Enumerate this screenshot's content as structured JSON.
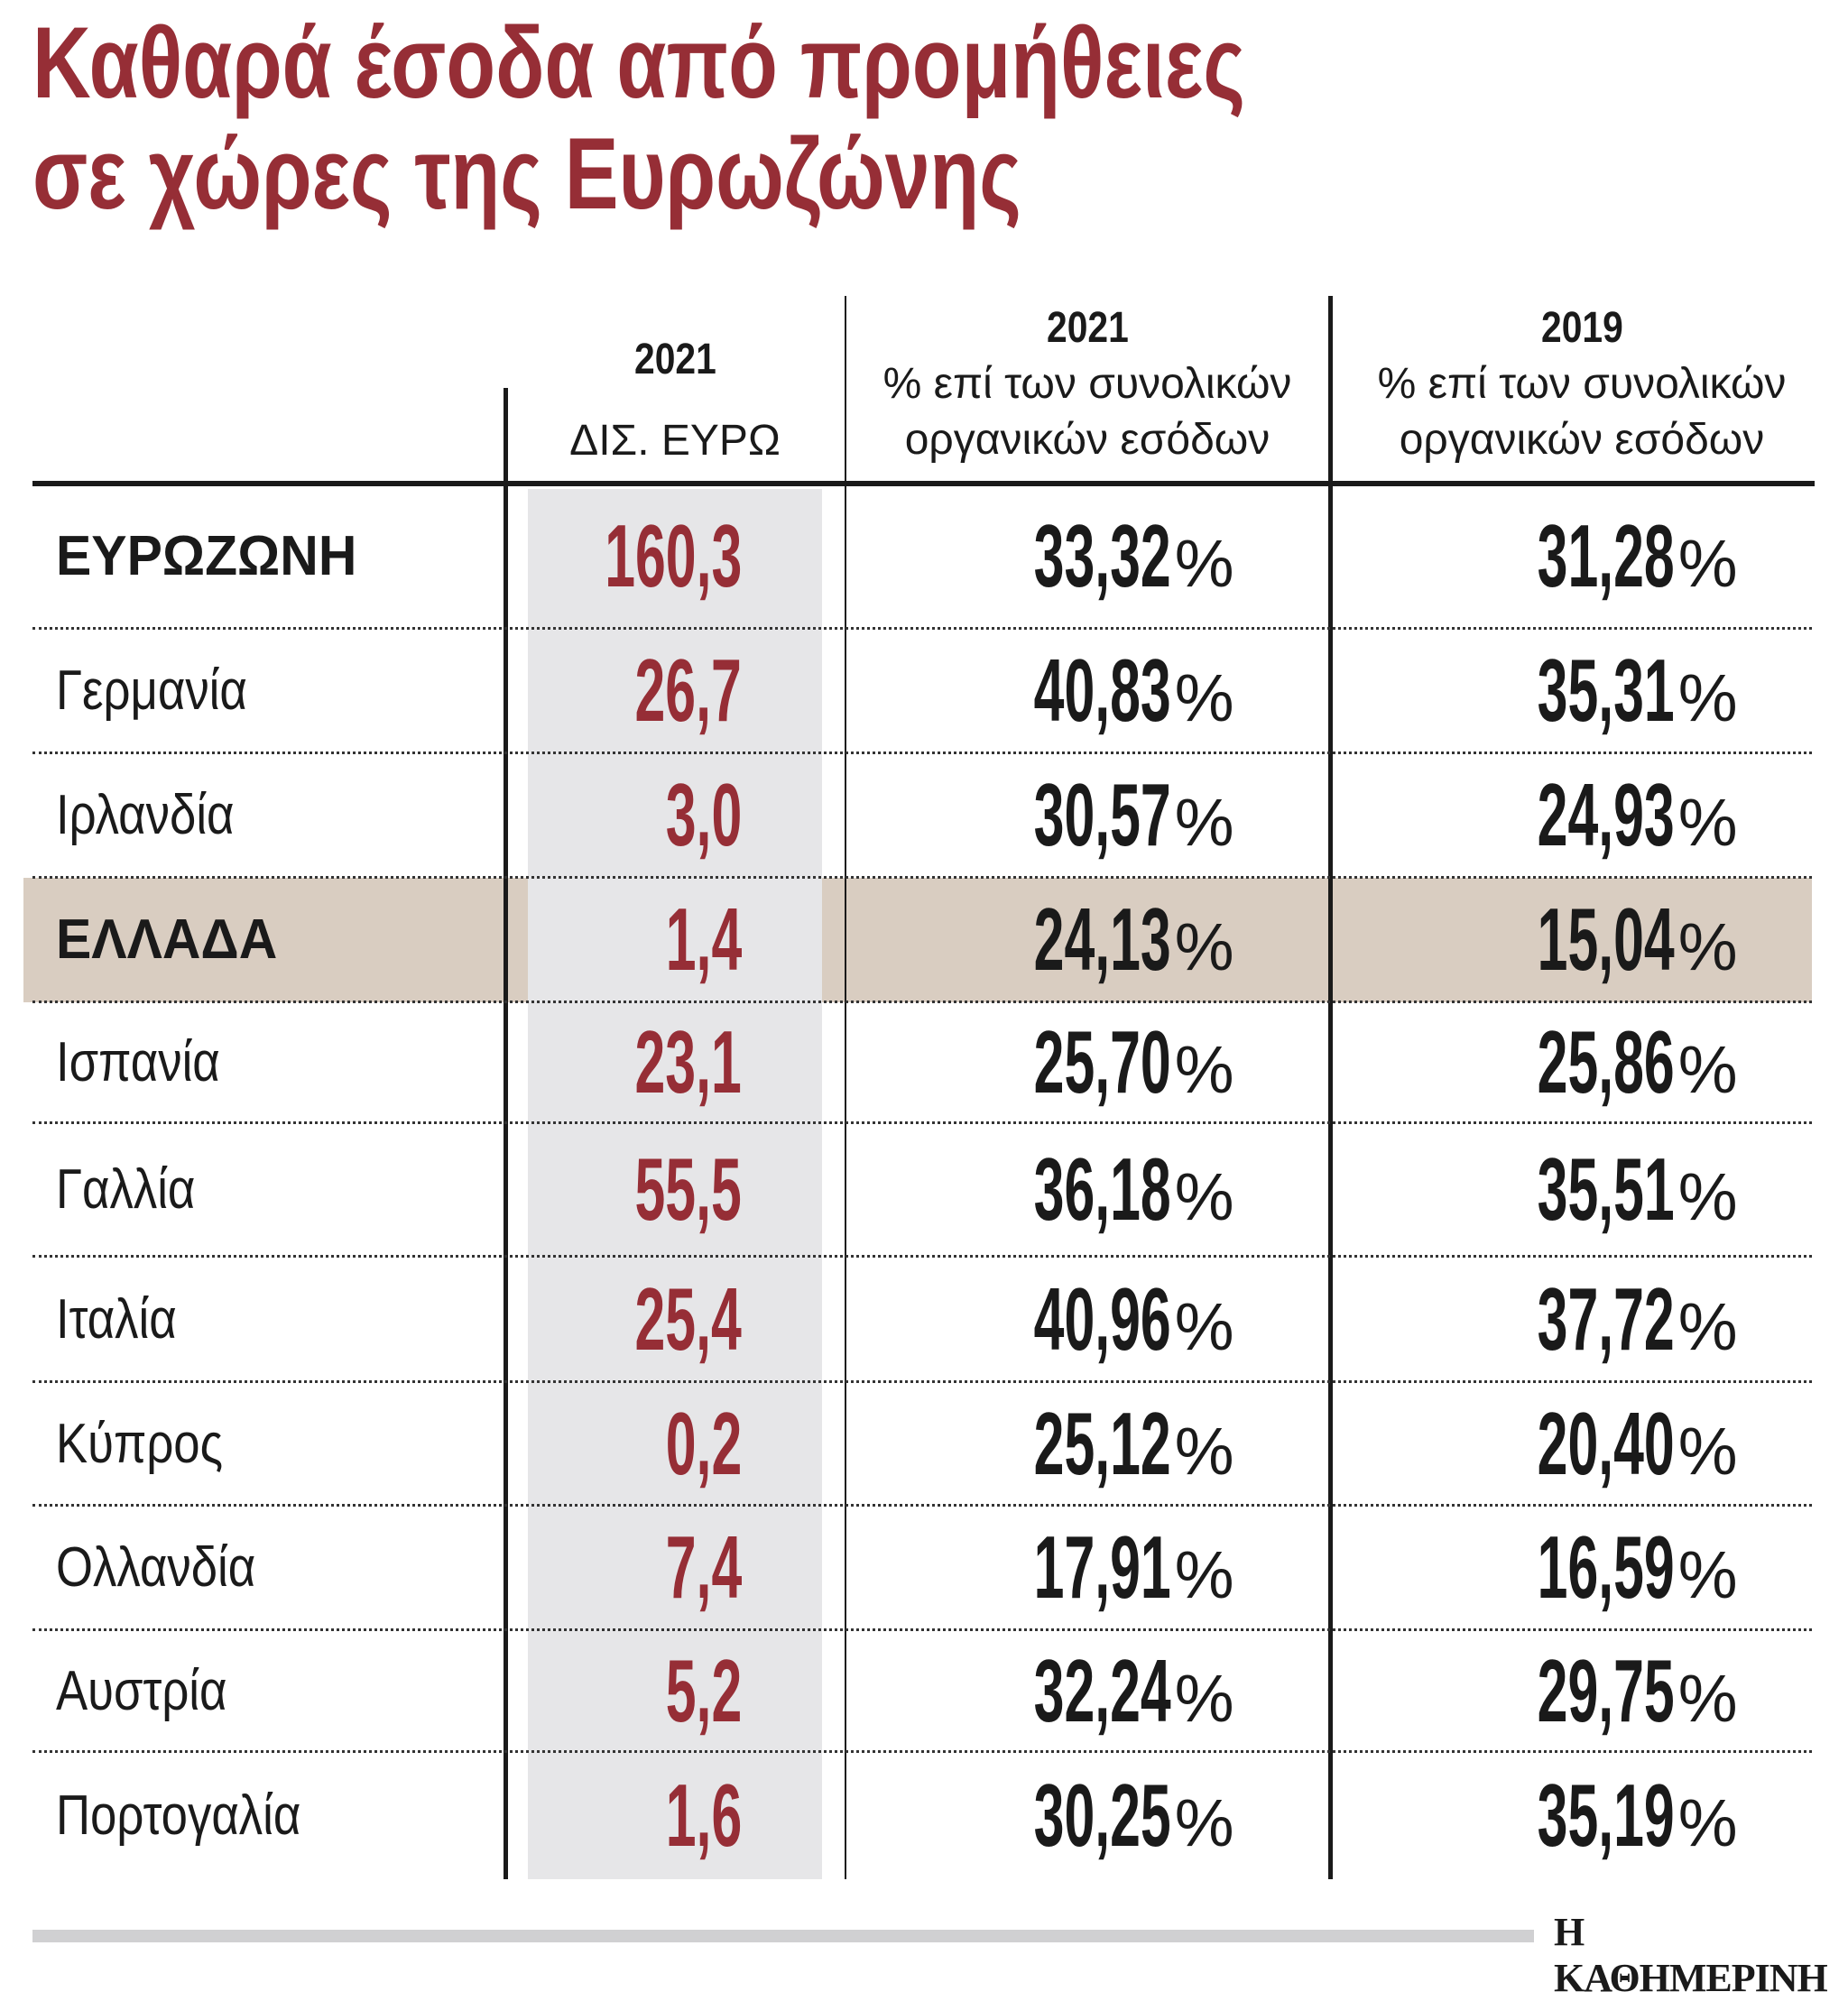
{
  "title": {
    "line1": "Καθαρά έσοδα από προμήθειες",
    "line2": "σε χώρες της Ευρωζώνης"
  },
  "colors": {
    "accent": "#962e36",
    "highlight_row": "#d9cdc1",
    "value_column": "#e6e6e8"
  },
  "headers": [
    {
      "year": "2021",
      "line1": "ΔΙΣ. ΕΥΡΩ",
      "line2": ""
    },
    {
      "year": "2021",
      "line1": "% επί των συνολικών",
      "line2": "οργανικών εσόδων"
    },
    {
      "year": "2019",
      "line1": "% επί των συνολικών",
      "line2": "οργανικών εσόδων"
    }
  ],
  "percent_sign": "%",
  "rows": [
    {
      "country": "ΕΥΡΩΖΩΝΗ",
      "bold": true,
      "bn_eur_2021": "160,3",
      "pct_2021": "33,32",
      "pct_2019": "31,28"
    },
    {
      "country": "Γερμανία",
      "bn_eur_2021": "26,7",
      "pct_2021": "40,83",
      "pct_2019": "35,31"
    },
    {
      "country": "Ιρλανδία",
      "bn_eur_2021": "3,0",
      "pct_2021": "30,57",
      "pct_2019": "24,93"
    },
    {
      "country": "ΕΛΛΑΔΑ",
      "bold": true,
      "highlighted": true,
      "bn_eur_2021": "1,4",
      "pct_2021": "24,13",
      "pct_2019": "15,04"
    },
    {
      "country": "Ισπανία",
      "bn_eur_2021": "23,1",
      "pct_2021": "25,70",
      "pct_2019": "25,86"
    },
    {
      "country": "Γαλλία",
      "bn_eur_2021": "55,5",
      "pct_2021": "36,18",
      "pct_2019": "35,51"
    },
    {
      "country": "Ιταλία",
      "bn_eur_2021": "25,4",
      "pct_2021": "40,96",
      "pct_2019": "37,72"
    },
    {
      "country": "Κύπρος",
      "bn_eur_2021": "0,2",
      "pct_2021": "25,12",
      "pct_2019": "20,40"
    },
    {
      "country": "Ολλανδία",
      "bn_eur_2021": "7,4",
      "pct_2021": "17,91",
      "pct_2019": "16,59"
    },
    {
      "country": "Αυστρία",
      "bn_eur_2021": "5,2",
      "pct_2021": "32,24",
      "pct_2019": "29,75"
    },
    {
      "country": "Πορτογαλία",
      "bn_eur_2021": "1,6",
      "pct_2021": "30,25",
      "pct_2019": "35,19"
    }
  ],
  "source_logo": "Η ΚΑΘΗΜΕΡΙΝΗ"
}
